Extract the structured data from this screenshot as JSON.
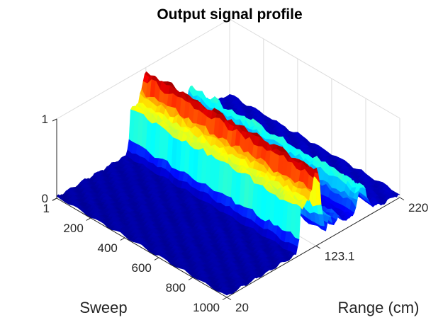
{
  "chart_data": {
    "type": "surface",
    "title": "Output signal profile",
    "xlabel": "Sweep",
    "ylabel": "Range (cm)",
    "zlabel": "",
    "x_range": [
      1,
      1000
    ],
    "y_range": [
      20,
      220
    ],
    "z_range": [
      0,
      1
    ],
    "x_ticks": [
      1,
      200,
      400,
      600,
      800,
      1000
    ],
    "x_tick_labels": [
      "1",
      "200",
      "400",
      "600",
      "800",
      "1000"
    ],
    "y_ticks": [
      20,
      123.1,
      220
    ],
    "y_tick_labels": [
      "20",
      "123.1",
      "220"
    ],
    "z_ticks": [
      0,
      1
    ],
    "z_tick_labels": [
      "0",
      "1"
    ],
    "colormap": [
      "#00008f",
      "#0000ff",
      "#00ffff",
      "#ffff00",
      "#ff0000",
      "#800000"
    ],
    "grid": true,
    "range_profile": [
      {
        "range": 20,
        "amplitude": 0.02
      },
      {
        "range": 100,
        "amplitude": 0.03
      },
      {
        "range": 103,
        "amplitude": 0.15
      },
      {
        "range": 106,
        "amplitude": 0.62
      },
      {
        "range": 109,
        "amplitude": 0.58
      },
      {
        "range": 113,
        "amplitude": 0.6
      },
      {
        "range": 118,
        "amplitude": 0.72
      },
      {
        "range": 121,
        "amplitude": 0.95
      },
      {
        "range": 124,
        "amplitude": 0.95
      },
      {
        "range": 127,
        "amplitude": 0.8
      },
      {
        "range": 130,
        "amplitude": 0.35
      },
      {
        "range": 134,
        "amplitude": 0.1
      },
      {
        "range": 139,
        "amplitude": 0.3
      },
      {
        "range": 144,
        "amplitude": 0.12
      },
      {
        "range": 150,
        "amplitude": 0.2
      },
      {
        "range": 158,
        "amplitude": 0.1
      },
      {
        "range": 166,
        "amplitude": 0.1
      },
      {
        "range": 170,
        "amplitude": 0.25
      },
      {
        "range": 174,
        "amplitude": 0.4
      },
      {
        "range": 178,
        "amplitude": 0.4
      },
      {
        "range": 183,
        "amplitude": 0.22
      },
      {
        "range": 190,
        "amplitude": 0.08
      },
      {
        "range": 200,
        "amplitude": 0.05
      },
      {
        "range": 220,
        "amplitude": 0.05
      }
    ]
  }
}
